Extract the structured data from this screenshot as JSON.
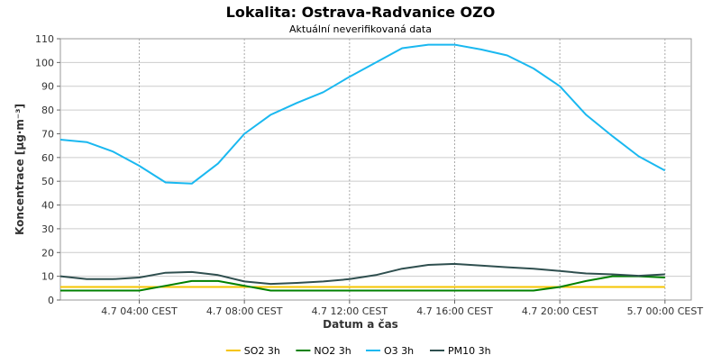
{
  "chart_data": {
    "type": "line",
    "title": "Lokalita: Ostrava-Radvanice OZO",
    "subtitle": "Aktuální neverifikovaná data",
    "xlabel": "Datum a čas",
    "ylabel": "Koncentrace [µg·m⁻³]",
    "ylim": [
      0,
      110
    ],
    "y_ticks": [
      0,
      10,
      20,
      30,
      40,
      50,
      60,
      70,
      80,
      90,
      100,
      110
    ],
    "xlim": [
      "2024-07-04T01:00",
      "2024-07-05T01:00"
    ],
    "x_ticks": [
      {
        "x": "2024-07-04T04:00",
        "label": "4.7 04:00 CEST"
      },
      {
        "x": "2024-07-04T08:00",
        "label": "4.7 08:00 CEST"
      },
      {
        "x": "2024-07-04T12:00",
        "label": "4.7 12:00 CEST"
      },
      {
        "x": "2024-07-04T16:00",
        "label": "4.7 16:00 CEST"
      },
      {
        "x": "2024-07-04T20:00",
        "label": "4.7 20:00 CEST"
      },
      {
        "x": "2024-07-05T00:00",
        "label": "5.7 00:00 CEST"
      }
    ],
    "grid": true,
    "legend_position": "bottom",
    "x": [
      "2024-07-04T01:00",
      "2024-07-04T02:00",
      "2024-07-04T03:00",
      "2024-07-04T04:00",
      "2024-07-04T05:00",
      "2024-07-04T06:00",
      "2024-07-04T07:00",
      "2024-07-04T08:00",
      "2024-07-04T09:00",
      "2024-07-04T10:00",
      "2024-07-04T11:00",
      "2024-07-04T12:00",
      "2024-07-04T13:00",
      "2024-07-04T14:00",
      "2024-07-04T15:00",
      "2024-07-04T16:00",
      "2024-07-04T17:00",
      "2024-07-04T18:00",
      "2024-07-04T19:00",
      "2024-07-04T20:00",
      "2024-07-04T21:00",
      "2024-07-04T22:00",
      "2024-07-04T23:00",
      "2024-07-05T00:00"
    ],
    "series": [
      {
        "name": "SO2 3h",
        "color": "#f5c400",
        "values": [
          5.5,
          5.5,
          5.5,
          5.5,
          5.5,
          5.5,
          5.5,
          5.5,
          5.5,
          5.5,
          5.5,
          5.5,
          5.5,
          5.5,
          5.5,
          5.5,
          5.5,
          5.5,
          5.5,
          5.5,
          5.5,
          5.5,
          5.5,
          5.5
        ]
      },
      {
        "name": "NO2 3h",
        "color": "#008000",
        "values": [
          4,
          4,
          4,
          4,
          6,
          8,
          8,
          6,
          4,
          4,
          4,
          4,
          4,
          4,
          4,
          4,
          4,
          4,
          4,
          5.5,
          8,
          10,
          10,
          9.5
        ]
      },
      {
        "name": "O3 3h",
        "color": "#1ab8f0",
        "values": [
          67.5,
          66.5,
          62.5,
          56.5,
          49.5,
          49,
          57.5,
          70,
          78,
          83,
          87.5,
          94,
          100,
          106,
          107.5,
          107.5,
          105.5,
          103,
          97.5,
          90,
          78,
          69,
          60.5,
          54.5
        ]
      },
      {
        "name": "PM10 3h",
        "color": "#2f4f4f",
        "values": [
          10,
          8.8,
          8.8,
          9.5,
          11.5,
          11.8,
          10.5,
          7.8,
          6.8,
          7.2,
          7.8,
          8.8,
          10.5,
          13.2,
          14.8,
          15.2,
          14.5,
          13.8,
          13.2,
          12.2,
          11.2,
          10.8,
          10.2,
          10.8
        ]
      }
    ]
  }
}
